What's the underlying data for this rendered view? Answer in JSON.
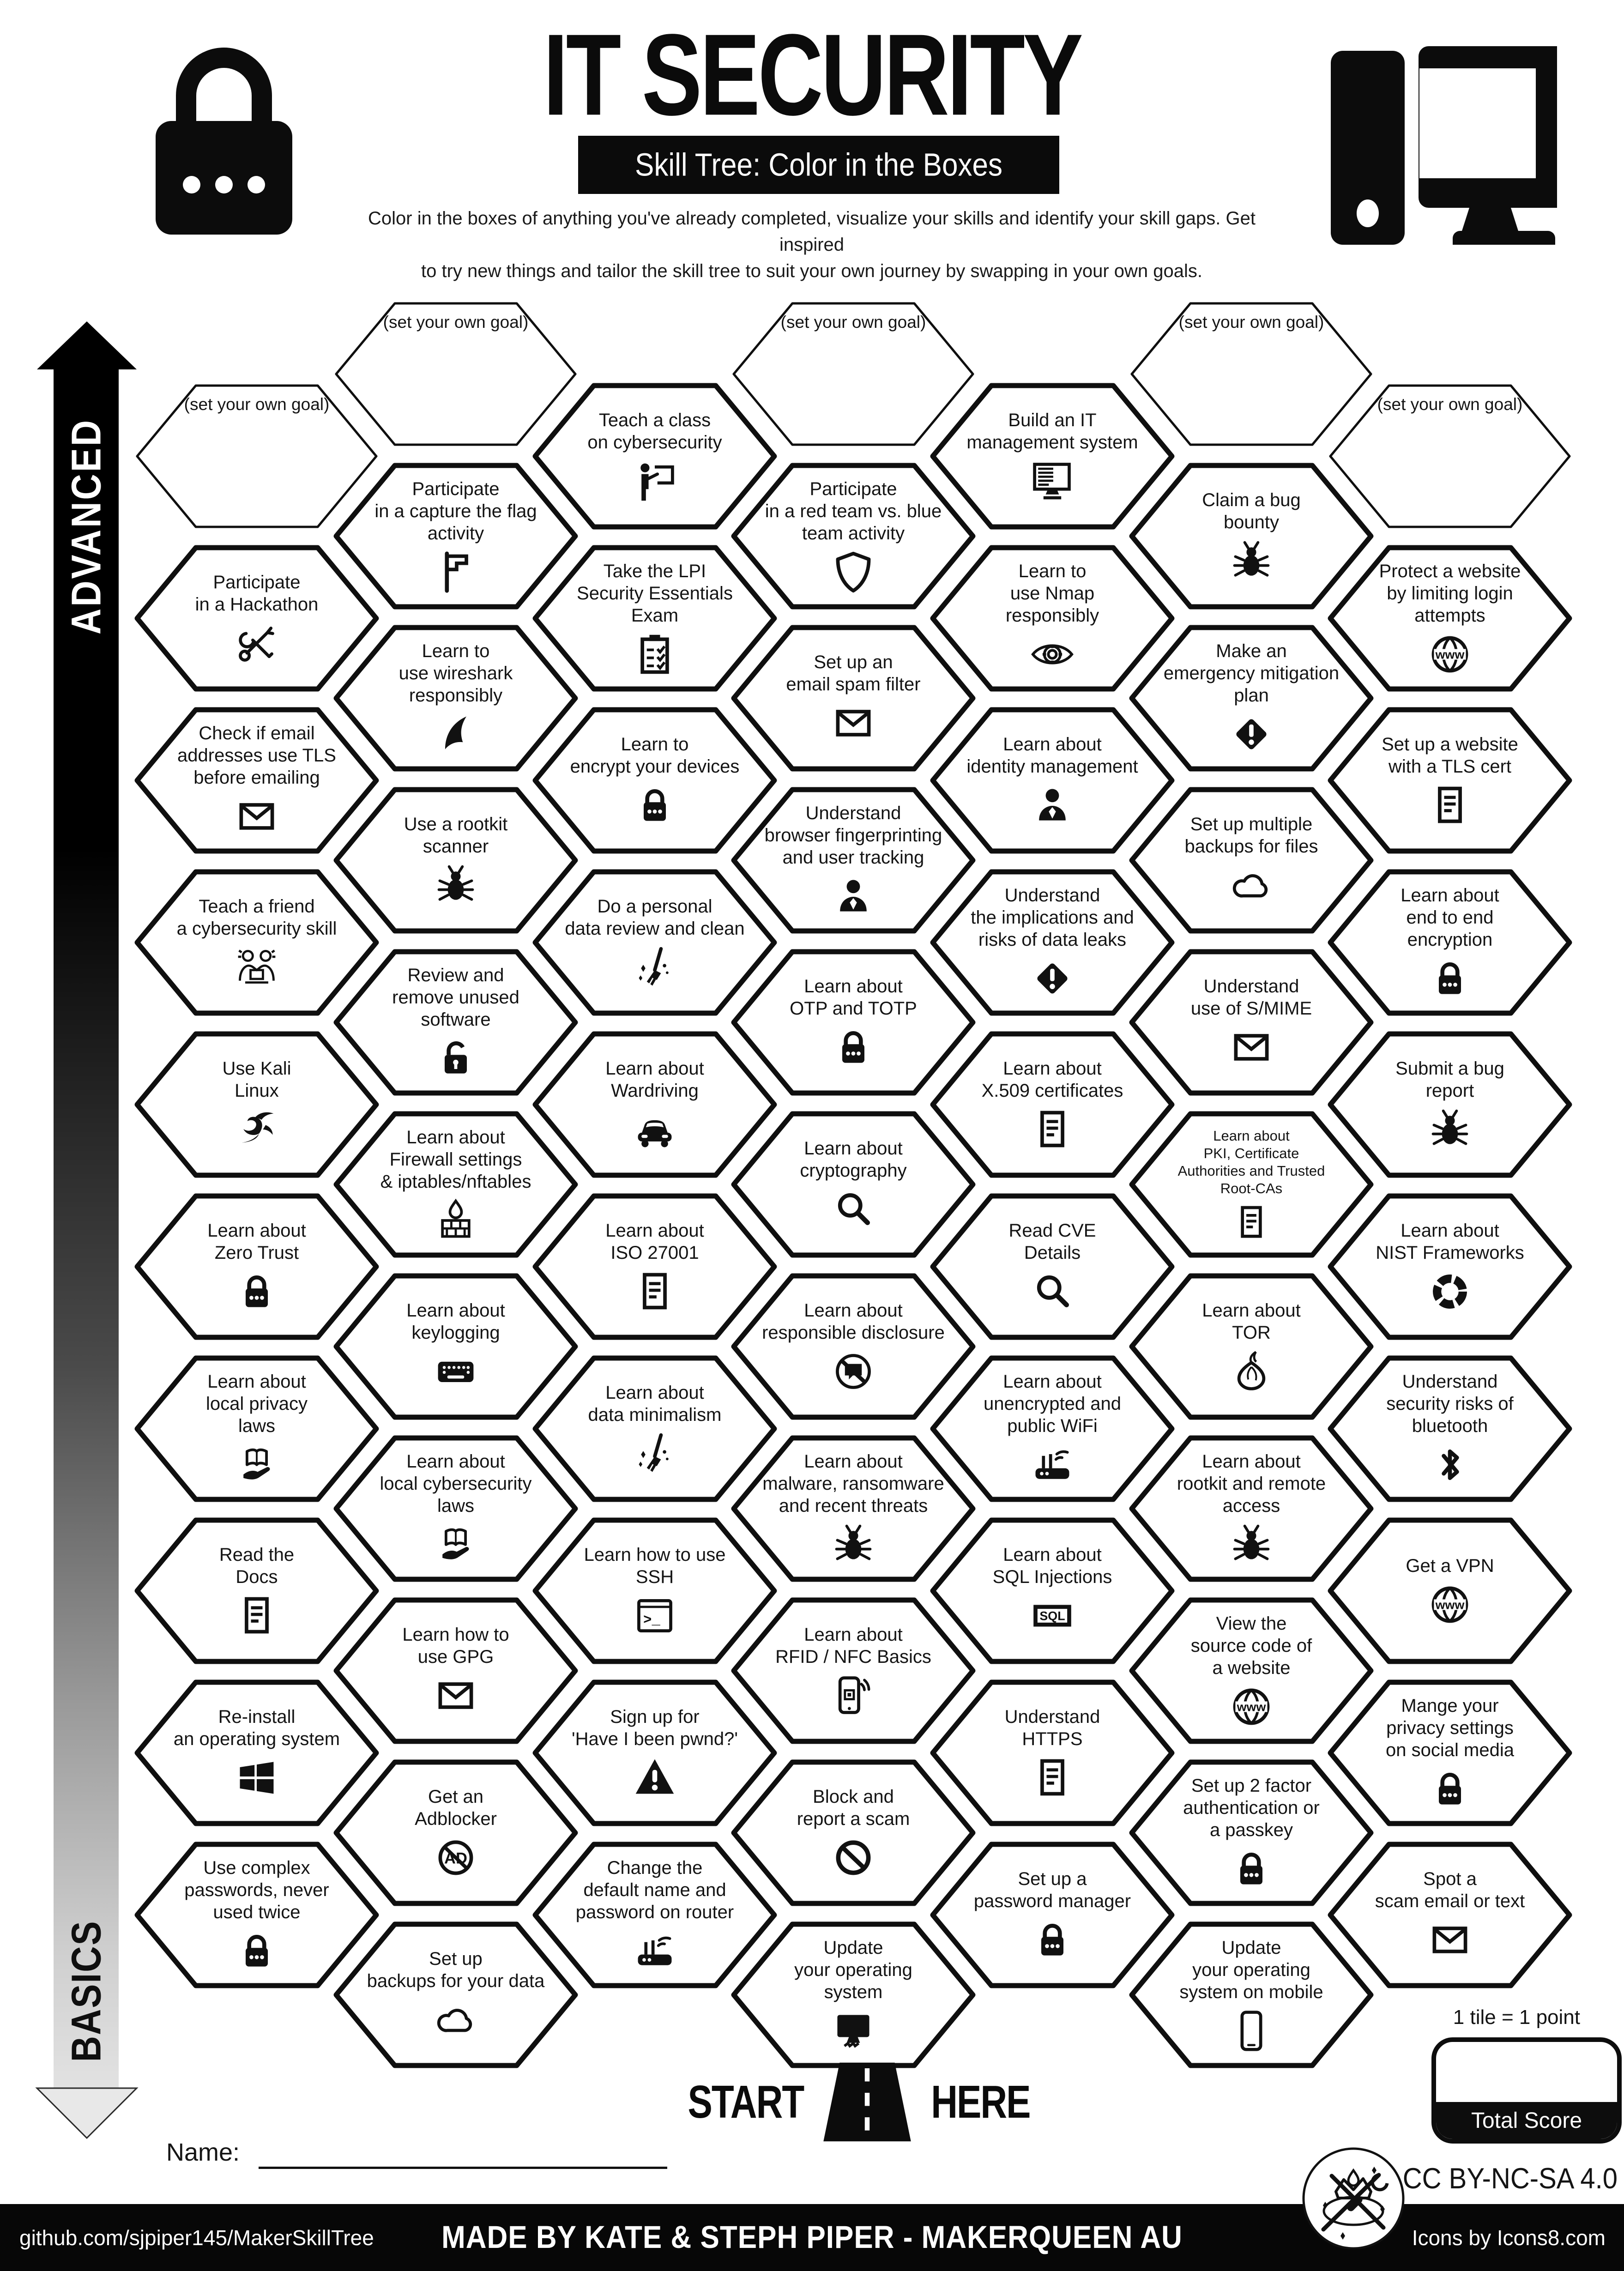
{
  "title": "IT SECURITY",
  "subtitle": "Skill Tree: Color in the Boxes",
  "description": {
    "line1": "Color in the boxes of anything you've already completed, visualize your skills and identify your skill gaps.  Get inspired",
    "line2": "to try new things and tailor the skill tree to suit your own journey by swapping in your own goals."
  },
  "axis": {
    "advanced": "ADVANCED",
    "basics": "BASICS"
  },
  "start_here": {
    "start": "START",
    "here": "HERE"
  },
  "name_label": "Name:",
  "score": {
    "tile_note": "1 tile = 1 point",
    "total_label": "Total Score"
  },
  "license": "CC BY-NC-SA 4.0",
  "footer": {
    "left": "github.com/sjpiper145/MakerSkillTree",
    "center": "MADE BY KATE & STEPH PIPER  -  MAKERQUEEN AU",
    "right": "Icons by Icons8.com"
  },
  "colors": {
    "ink": "#0d0d0d",
    "paper": "#ffffff"
  },
  "hexes": [
    {
      "col": 1,
      "row": 0,
      "goal": true,
      "label": "(set your own goal)"
    },
    {
      "col": 1,
      "row": 1,
      "label": "Participate\nin a Hackathon",
      "icon": "tools"
    },
    {
      "col": 1,
      "row": 2,
      "label": "Check if email\naddresses use TLS\nbefore emailing",
      "icon": "envelope"
    },
    {
      "col": 1,
      "row": 3,
      "label": "Teach a friend\na cybersecurity skill",
      "icon": "people-laptop",
      "iw": 128
    },
    {
      "col": 1,
      "row": 4,
      "label": "Use Kali\nLinux",
      "icon": "kali"
    },
    {
      "col": 1,
      "row": 5,
      "label": "Learn about\nZero Trust",
      "icon": "lock"
    },
    {
      "col": 1,
      "row": 6,
      "label": "Learn about\nlocal privacy\nlaws",
      "icon": "book-hand"
    },
    {
      "col": 1,
      "row": 7,
      "label": "Read the\nDocs",
      "icon": "doc"
    },
    {
      "col": 1,
      "row": 8,
      "label": "Re-install\nan operating system",
      "icon": "windows"
    },
    {
      "col": 1,
      "row": 9,
      "label": "Use complex\npasswords, never\nused twice",
      "icon": "lock"
    },
    {
      "col": 2,
      "row": 0,
      "goal": true,
      "label": "(set your own goal)"
    },
    {
      "col": 2,
      "row": 1,
      "label": "Participate\nin a capture the flag\nactivity",
      "icon": "flag"
    },
    {
      "col": 2,
      "row": 2,
      "label": "Learn to\nuse wireshark\nresponsibly",
      "icon": "shark"
    },
    {
      "col": 2,
      "row": 3,
      "label": "Use a rootkit\nscanner",
      "icon": "bug"
    },
    {
      "col": 2,
      "row": 4,
      "label": "Review and\nremove unused\nsoftware",
      "icon": "lock-open"
    },
    {
      "col": 2,
      "row": 5,
      "label": "Learn about\nFirewall settings\n& iptables/nftables",
      "icon": "firewall"
    },
    {
      "col": 2,
      "row": 6,
      "label": "Learn about\nkeylogging",
      "icon": "keyboard"
    },
    {
      "col": 2,
      "row": 7,
      "label": "Learn about\nlocal cybersecurity\nlaws",
      "icon": "book-hand"
    },
    {
      "col": 2,
      "row": 8,
      "label": "Learn how to\nuse GPG",
      "icon": "envelope"
    },
    {
      "col": 2,
      "row": 9,
      "label": "Get an\nAdblocker",
      "icon": "ad-block"
    },
    {
      "col": 2,
      "row": 10,
      "label": "Set up\nbackups for your data",
      "icon": "cloud"
    },
    {
      "col": 3,
      "row": 0,
      "label": "Teach a class\non cybersecurity",
      "icon": "presenter"
    },
    {
      "col": 3,
      "row": 1,
      "label": "Take the LPI\nSecurity Essentials\nExam",
      "icon": "clipboard"
    },
    {
      "col": 3,
      "row": 2,
      "label": "Learn to\nencrypt your devices",
      "icon": "lock"
    },
    {
      "col": 3,
      "row": 3,
      "label": "Do a personal\ndata review and clean",
      "icon": "broom"
    },
    {
      "col": 3,
      "row": 4,
      "label": "Learn about\nWardriving",
      "icon": "car"
    },
    {
      "col": 3,
      "row": 5,
      "label": "Learn about\nISO 27001",
      "icon": "doc"
    },
    {
      "col": 3,
      "row": 6,
      "label": "Learn about\ndata minimalism",
      "icon": "broom"
    },
    {
      "col": 3,
      "row": 7,
      "label": "Learn how to use\nSSH",
      "icon": "terminal"
    },
    {
      "col": 3,
      "row": 8,
      "label": "Sign up for\n'Have I been pwnd?'",
      "icon": "warn-triangle"
    },
    {
      "col": 3,
      "row": 9,
      "label": "Change the\ndefault name and\npassword on router",
      "icon": "router"
    },
    {
      "col": 4,
      "row": 0,
      "goal": true,
      "label": "(set your own goal)"
    },
    {
      "col": 4,
      "row": 1,
      "label": "Participate\nin a red team vs. blue\nteam activity",
      "icon": "shield"
    },
    {
      "col": 4,
      "row": 2,
      "label": "Set up an\nemail spam filter",
      "icon": "envelope"
    },
    {
      "col": 4,
      "row": 3,
      "label": "Understand\nbrowser fingerprinting\nand user tracking",
      "icon": "person"
    },
    {
      "col": 4,
      "row": 4,
      "label": "Learn about\nOTP and TOTP",
      "icon": "lock"
    },
    {
      "col": 4,
      "row": 5,
      "label": "Learn about\ncryptography",
      "icon": "magnifier"
    },
    {
      "col": 4,
      "row": 6,
      "label": "Learn about\nresponsible disclosure",
      "icon": "speech-block"
    },
    {
      "col": 4,
      "row": 7,
      "label": "Learn about\nmalware, ransomware\nand recent threats",
      "icon": "bug"
    },
    {
      "col": 4,
      "row": 8,
      "label": "Learn about\nRFID / NFC Basics",
      "icon": "rfid-phone"
    },
    {
      "col": 4,
      "row": 9,
      "label": "Block and\nreport a scam",
      "icon": "no-entry"
    },
    {
      "col": 4,
      "row": 10,
      "label": "Update\nyour operating\nsystem",
      "icon": "monitor-fill"
    },
    {
      "col": 5,
      "row": 0,
      "label": "Build an IT\nmanagement system",
      "icon": "monitor-list"
    },
    {
      "col": 5,
      "row": 1,
      "label": "Learn to\nuse Nmap\nresponsibly",
      "icon": "eye-target"
    },
    {
      "col": 5,
      "row": 2,
      "label": "Learn about\nidentity management",
      "icon": "person"
    },
    {
      "col": 5,
      "row": 3,
      "label": "Understand\nthe implications and\nrisks of data leaks",
      "icon": "warn-diamond"
    },
    {
      "col": 5,
      "row": 4,
      "label": "Learn about\nX.509 certificates",
      "icon": "doc"
    },
    {
      "col": 5,
      "row": 5,
      "label": "Read CVE\nDetails",
      "icon": "magnifier"
    },
    {
      "col": 5,
      "row": 6,
      "label": "Learn about\nunencrypted and\npublic WiFi",
      "icon": "router"
    },
    {
      "col": 5,
      "row": 7,
      "label": "Learn about\nSQL Injections",
      "icon": "sql"
    },
    {
      "col": 5,
      "row": 8,
      "label": "Understand\nHTTPS",
      "icon": "doc"
    },
    {
      "col": 5,
      "row": 9,
      "label": "Set up a\npassword manager",
      "icon": "lock"
    },
    {
      "col": 6,
      "row": 0,
      "goal": true,
      "label": "(set your own goal)"
    },
    {
      "col": 6,
      "row": 1,
      "label": "Claim a bug\nbounty",
      "icon": "bug"
    },
    {
      "col": 6,
      "row": 2,
      "label": "Make an\nemergency mitigation\nplan",
      "icon": "warn-diamond"
    },
    {
      "col": 6,
      "row": 3,
      "label": "Set up multiple\nbackups for files",
      "icon": "cloud"
    },
    {
      "col": 6,
      "row": 4,
      "label": "Understand\nuse of S/MIME",
      "icon": "envelope"
    },
    {
      "col": 6,
      "row": 5,
      "small": true,
      "label": "Learn about\nPKI, Certificate\nAuthorities and Trusted\nRoot-CAs",
      "icon": "doc",
      "iw": 84,
      "ih": 84
    },
    {
      "col": 6,
      "row": 6,
      "label": "Learn about\nTOR",
      "icon": "onion"
    },
    {
      "col": 6,
      "row": 7,
      "label": "Learn about\nrootkit and remote\naccess",
      "icon": "bug"
    },
    {
      "col": 6,
      "row": 8,
      "label": "View the\nsource code of\na website",
      "icon": "globe"
    },
    {
      "col": 6,
      "row": 9,
      "label": "Set up 2 factor\nauthentication or\na passkey",
      "icon": "lock"
    },
    {
      "col": 6,
      "row": 10,
      "label": "Update\nyour operating\nsystem on mobile",
      "icon": "phone"
    },
    {
      "col": 7,
      "row": 0,
      "goal": true,
      "label": "(set your own goal)"
    },
    {
      "col": 7,
      "row": 1,
      "label": "Protect a website\nby limiting login\nattempts",
      "icon": "globe"
    },
    {
      "col": 7,
      "row": 2,
      "label": "Set up a website\nwith a TLS cert",
      "icon": "doc"
    },
    {
      "col": 7,
      "row": 3,
      "label": "Learn about\nend to end\nencryption",
      "icon": "lock"
    },
    {
      "col": 7,
      "row": 4,
      "label": "Submit a bug\nreport",
      "icon": "bug"
    },
    {
      "col": 7,
      "row": 5,
      "label": "Learn about\nNIST Frameworks",
      "icon": "nist"
    },
    {
      "col": 7,
      "row": 6,
      "label": "Understand\nsecurity risks of\nbluetooth",
      "icon": "bluetooth"
    },
    {
      "col": 7,
      "row": 7,
      "label": "Get a VPN",
      "icon": "globe"
    },
    {
      "col": 7,
      "row": 8,
      "label": "Mange your\nprivacy settings\non social media",
      "icon": "lock"
    },
    {
      "col": 7,
      "row": 9,
      "label": "Spot a\nscam email or text",
      "icon": "envelope"
    }
  ]
}
